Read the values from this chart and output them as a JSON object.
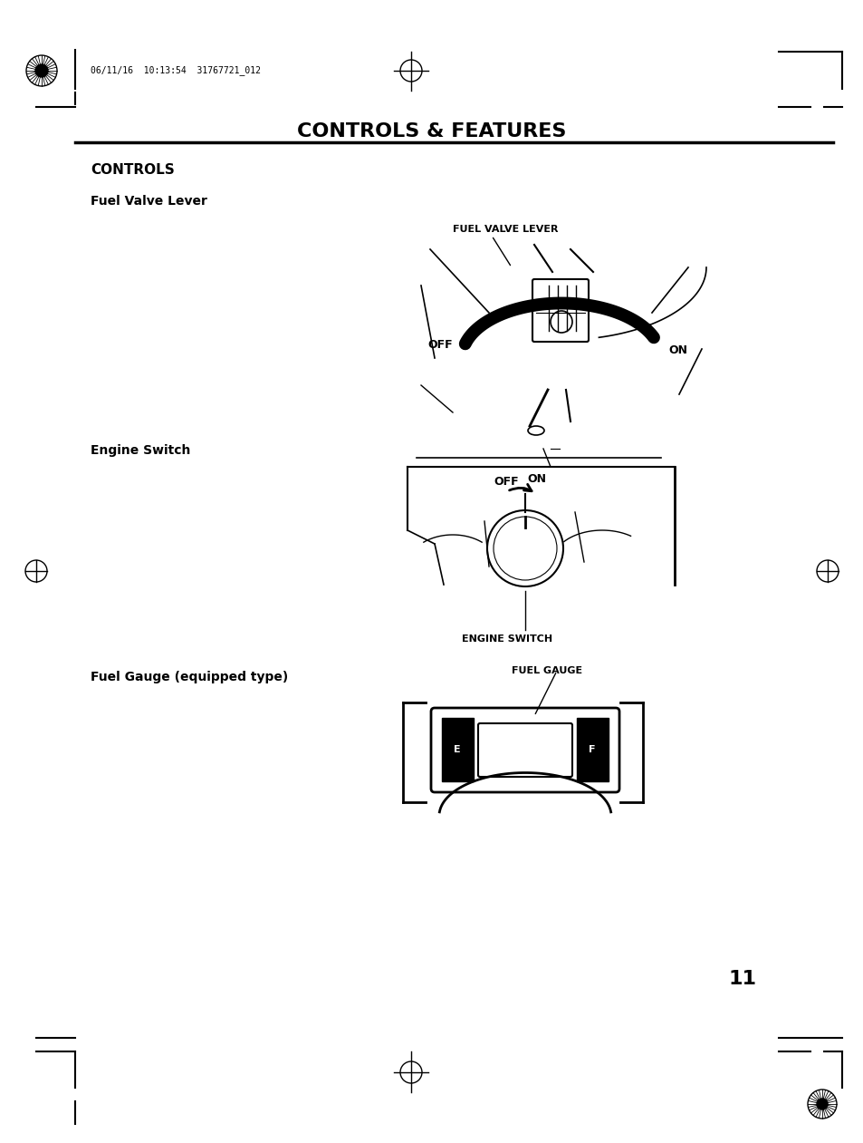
{
  "page_width": 9.54,
  "page_height": 12.61,
  "bg_color": "#ffffff",
  "title": "CONTROLS & FEATURES",
  "title_fontsize": 16,
  "section_controls_label": "CONTROLS",
  "subsection_fuel_valve": "Fuel Valve Lever",
  "subsection_engine_switch": "Engine Switch",
  "subsection_fuel_gauge": "Fuel Gauge (equipped type)",
  "page_number": "11",
  "header_text": "06/11/16  10:13:54  31767721_012",
  "text_color": "#000000",
  "label_fuel_valve_lever": "FUEL VALVE LEVER",
  "label_off_fvl": "OFF",
  "label_on_fvl": "ON",
  "label_engine_switch": "ENGINE SWITCH",
  "label_off_es": "OFF",
  "label_on_es": "ON",
  "label_fuel_gauge": "FUEL GAUGE"
}
